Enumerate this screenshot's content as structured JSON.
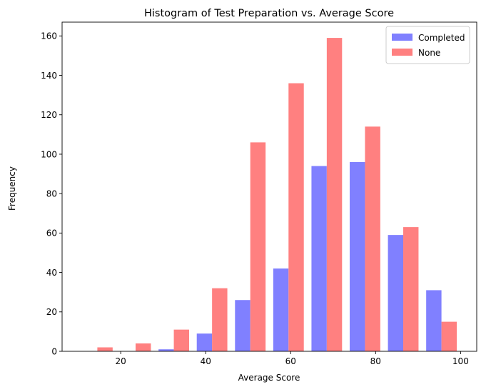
{
  "chart_data": {
    "type": "bar",
    "title": "Histogram of Test Preparation vs. Average Score",
    "xlabel": "Average Score",
    "ylabel": "Frequency",
    "xlim": [
      6.2,
      103.8
    ],
    "ylim": [
      0,
      167
    ],
    "xticks": [
      20,
      40,
      60,
      80,
      100
    ],
    "yticks": [
      0,
      20,
      40,
      60,
      80,
      100,
      120,
      140,
      160
    ],
    "grid": false,
    "legend_position": "top-right",
    "bin_edges": [
      10,
      19,
      28,
      37,
      46,
      55,
      64,
      73,
      82,
      91,
      100
    ],
    "series": [
      {
        "name": "Completed",
        "color": "#8080ff",
        "values": [
          0,
          0,
          1,
          9,
          26,
          42,
          94,
          96,
          59,
          31
        ]
      },
      {
        "name": "None",
        "color": "#ff8080",
        "values": [
          2,
          4,
          11,
          32,
          106,
          136,
          159,
          114,
          63,
          15
        ]
      }
    ]
  }
}
